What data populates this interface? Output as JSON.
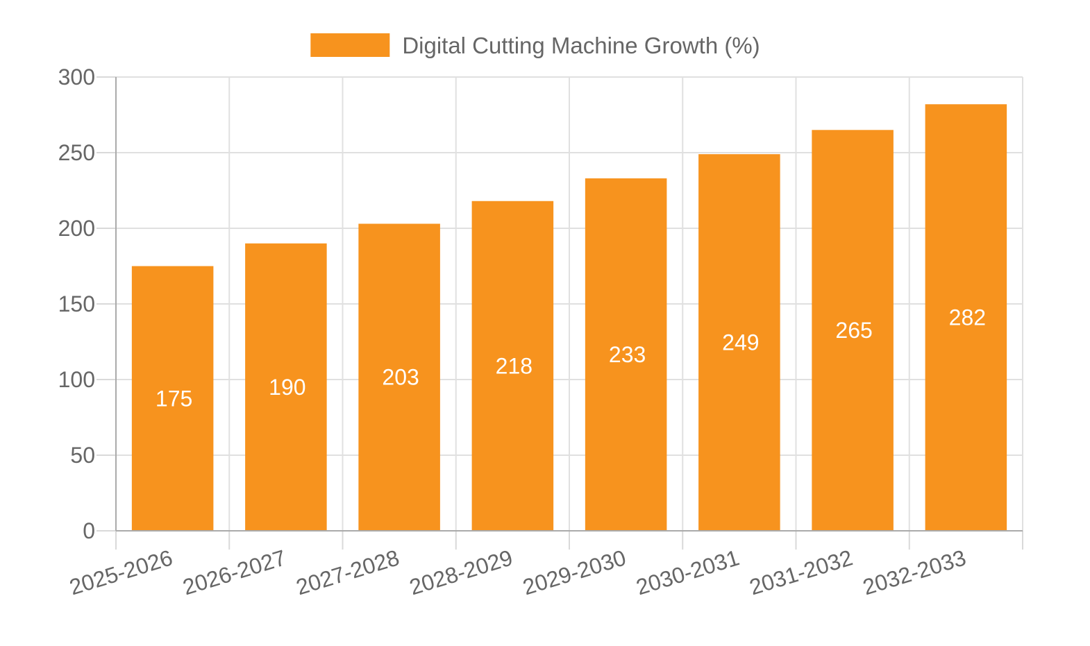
{
  "chart_data": {
    "type": "bar",
    "categories": [
      "2025-2026",
      "2026-2027",
      "2027-2028",
      "2028-2029",
      "2029-2030",
      "2030-2031",
      "2031-2032",
      "2032-2033"
    ],
    "series": [
      {
        "name": "Digital Cutting Machine Growth (%)",
        "values": [
          175,
          190,
          203,
          218,
          233,
          249,
          265,
          282
        ],
        "color": "#f7931e"
      }
    ],
    "ylim": [
      0,
      300
    ],
    "yticks": [
      0,
      50,
      100,
      150,
      200,
      250,
      300
    ],
    "grid": true,
    "legend_position": "top-center",
    "data_labels": true
  }
}
